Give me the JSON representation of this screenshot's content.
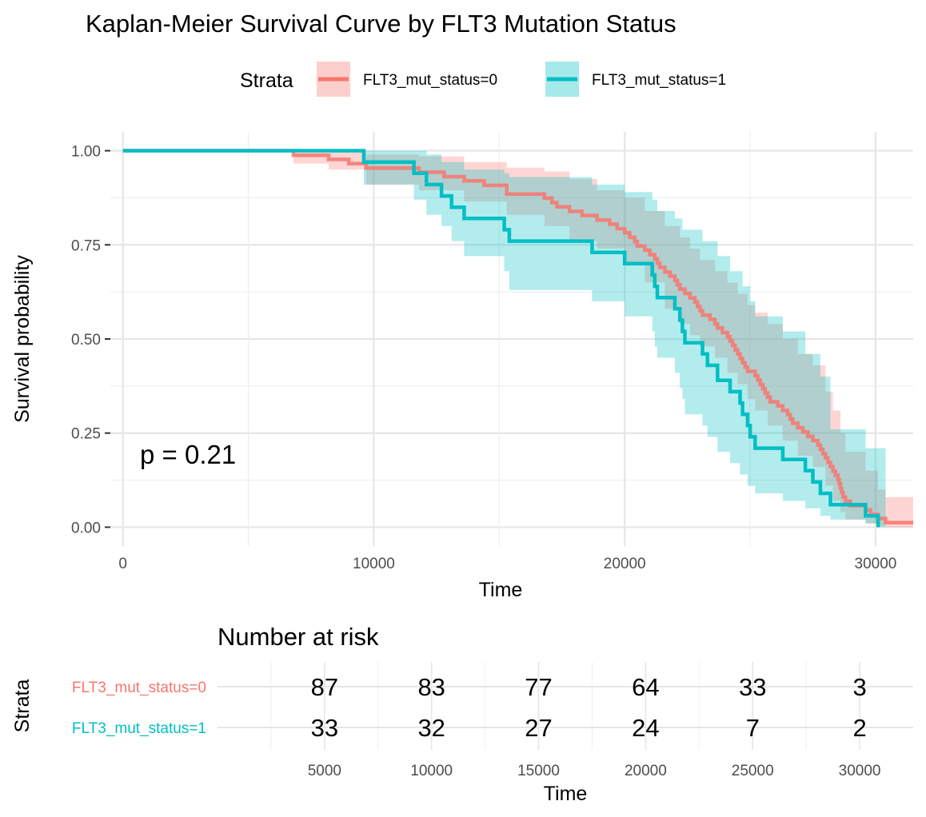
{
  "chart_data": {
    "type": "line",
    "title": "Kaplan-Meier Survival Curve by FLT3 Mutation Status",
    "xlabel": "Time",
    "ylabel": "Survival probability",
    "xlim": [
      -500,
      31500
    ],
    "ylim": [
      0,
      1
    ],
    "x_ticks": [
      "0",
      "10000",
      "20000",
      "30000"
    ],
    "x_tick_values": [
      0,
      10000,
      20000,
      30000
    ],
    "y_ticks": [
      "0.00",
      "0.25",
      "0.50",
      "0.75",
      "1.00"
    ],
    "y_tick_values": [
      0,
      0.25,
      0.5,
      0.75,
      1.0
    ],
    "grid": true,
    "legend": {
      "title": "Strata",
      "placement": "top",
      "entries": [
        "FLT3_mut_status=0",
        "FLT3_mut_status=1"
      ]
    },
    "annotation": "p = 0.21",
    "series": [
      {
        "name": "FLT3_mut_status=0",
        "color": "#F8766D",
        "points": [
          [
            0,
            1.0
          ],
          [
            6800,
            0.988
          ],
          [
            8200,
            0.977
          ],
          [
            9000,
            0.966
          ],
          [
            9700,
            0.954
          ],
          [
            11800,
            0.943
          ],
          [
            12800,
            0.931
          ],
          [
            13600,
            0.92
          ],
          [
            14400,
            0.908
          ],
          [
            15300,
            0.897
          ],
          [
            15300,
            0.885
          ],
          [
            16800,
            0.874
          ],
          [
            17100,
            0.862
          ],
          [
            17300,
            0.851
          ],
          [
            17800,
            0.839
          ],
          [
            18300,
            0.828
          ],
          [
            18900,
            0.816
          ],
          [
            19400,
            0.805
          ],
          [
            19700,
            0.793
          ],
          [
            20000,
            0.782
          ],
          [
            20200,
            0.77
          ],
          [
            20400,
            0.759
          ],
          [
            20500,
            0.747
          ],
          [
            20800,
            0.736
          ],
          [
            21000,
            0.724
          ],
          [
            21200,
            0.713
          ],
          [
            21300,
            0.701
          ],
          [
            21400,
            0.69
          ],
          [
            21600,
            0.678
          ],
          [
            21800,
            0.667
          ],
          [
            22000,
            0.655
          ],
          [
            22100,
            0.644
          ],
          [
            22200,
            0.632
          ],
          [
            22400,
            0.621
          ],
          [
            22600,
            0.609
          ],
          [
            22800,
            0.598
          ],
          [
            22900,
            0.586
          ],
          [
            23000,
            0.575
          ],
          [
            23100,
            0.563
          ],
          [
            23400,
            0.552
          ],
          [
            23600,
            0.54
          ],
          [
            23700,
            0.529
          ],
          [
            23900,
            0.517
          ],
          [
            24100,
            0.506
          ],
          [
            24200,
            0.494
          ],
          [
            24300,
            0.483
          ],
          [
            24400,
            0.471
          ],
          [
            24500,
            0.46
          ],
          [
            24600,
            0.448
          ],
          [
            24700,
            0.437
          ],
          [
            24800,
            0.425
          ],
          [
            24900,
            0.414
          ],
          [
            25200,
            0.402
          ],
          [
            25300,
            0.391
          ],
          [
            25400,
            0.379
          ],
          [
            25500,
            0.368
          ],
          [
            25600,
            0.356
          ],
          [
            25700,
            0.345
          ],
          [
            25800,
            0.333
          ],
          [
            26100,
            0.322
          ],
          [
            26300,
            0.31
          ],
          [
            26500,
            0.299
          ],
          [
            26600,
            0.287
          ],
          [
            26700,
            0.276
          ],
          [
            26900,
            0.264
          ],
          [
            27100,
            0.253
          ],
          [
            27300,
            0.241
          ],
          [
            27500,
            0.23
          ],
          [
            27700,
            0.218
          ],
          [
            27800,
            0.207
          ],
          [
            27900,
            0.195
          ],
          [
            28000,
            0.184
          ],
          [
            28100,
            0.172
          ],
          [
            28200,
            0.161
          ],
          [
            28300,
            0.149
          ],
          [
            28400,
            0.138
          ],
          [
            28500,
            0.126
          ],
          [
            28550,
            0.115
          ],
          [
            28600,
            0.103
          ],
          [
            28650,
            0.092
          ],
          [
            28700,
            0.08
          ],
          [
            28800,
            0.069
          ],
          [
            29000,
            0.057
          ],
          [
            29600,
            0.046
          ],
          [
            29800,
            0.034
          ],
          [
            30100,
            0.023
          ],
          [
            30400,
            0.012
          ],
          [
            31500,
            0.012
          ]
        ],
        "ci_upper": [
          [
            0,
            1.0
          ],
          [
            6800,
            1.0
          ],
          [
            8200,
            1.0
          ],
          [
            9700,
            0.99
          ],
          [
            11800,
            0.985
          ],
          [
            13600,
            0.97
          ],
          [
            15300,
            0.955
          ],
          [
            16800,
            0.945
          ],
          [
            17800,
            0.925
          ],
          [
            18900,
            0.895
          ],
          [
            20000,
            0.875
          ],
          [
            20800,
            0.84
          ],
          [
            21600,
            0.8
          ],
          [
            22200,
            0.77
          ],
          [
            22600,
            0.74
          ],
          [
            23000,
            0.71
          ],
          [
            23600,
            0.68
          ],
          [
            24100,
            0.65
          ],
          [
            24500,
            0.62
          ],
          [
            24900,
            0.59
          ],
          [
            25200,
            0.57
          ],
          [
            25700,
            0.54
          ],
          [
            26300,
            0.5
          ],
          [
            26900,
            0.46
          ],
          [
            27500,
            0.43
          ],
          [
            28000,
            0.36
          ],
          [
            28300,
            0.31
          ],
          [
            28600,
            0.25
          ],
          [
            28800,
            0.2
          ],
          [
            29600,
            0.15
          ],
          [
            30100,
            0.1
          ],
          [
            30400,
            0.08
          ],
          [
            31500,
            0.08
          ]
        ],
        "ci_lower": [
          [
            0,
            1.0
          ],
          [
            6800,
            0.966
          ],
          [
            8200,
            0.95
          ],
          [
            9700,
            0.91
          ],
          [
            11800,
            0.895
          ],
          [
            13600,
            0.865
          ],
          [
            15300,
            0.83
          ],
          [
            16800,
            0.8
          ],
          [
            17800,
            0.76
          ],
          [
            18900,
            0.74
          ],
          [
            20000,
            0.7
          ],
          [
            20800,
            0.65
          ],
          [
            21600,
            0.58
          ],
          [
            22200,
            0.54
          ],
          [
            22600,
            0.51
          ],
          [
            23000,
            0.48
          ],
          [
            23600,
            0.45
          ],
          [
            24100,
            0.41
          ],
          [
            24500,
            0.38
          ],
          [
            24900,
            0.34
          ],
          [
            25200,
            0.31
          ],
          [
            25700,
            0.27
          ],
          [
            26300,
            0.23
          ],
          [
            26900,
            0.19
          ],
          [
            27500,
            0.16
          ],
          [
            28000,
            0.11
          ],
          [
            28300,
            0.07
          ],
          [
            28600,
            0.04
          ],
          [
            28800,
            0.02
          ],
          [
            29600,
            0.01
          ],
          [
            30100,
            0.003
          ],
          [
            30400,
            0.0
          ],
          [
            31500,
            0.0
          ]
        ]
      },
      {
        "name": "FLT3_mut_status=1",
        "color": "#00BFC4",
        "points": [
          [
            0,
            1.0
          ],
          [
            9600,
            0.97
          ],
          [
            11600,
            0.94
          ],
          [
            12100,
            0.91
          ],
          [
            12700,
            0.88
          ],
          [
            13100,
            0.85
          ],
          [
            13600,
            0.82
          ],
          [
            15200,
            0.79
          ],
          [
            15400,
            0.76
          ],
          [
            18700,
            0.73
          ],
          [
            20000,
            0.7
          ],
          [
            21100,
            0.67
          ],
          [
            21200,
            0.64
          ],
          [
            21300,
            0.61
          ],
          [
            22000,
            0.58
          ],
          [
            22200,
            0.55
          ],
          [
            22300,
            0.52
          ],
          [
            22400,
            0.49
          ],
          [
            23100,
            0.46
          ],
          [
            23300,
            0.43
          ],
          [
            23700,
            0.39
          ],
          [
            24200,
            0.36
          ],
          [
            24600,
            0.33
          ],
          [
            24700,
            0.3
          ],
          [
            24900,
            0.27
          ],
          [
            25000,
            0.24
          ],
          [
            25200,
            0.21
          ],
          [
            26300,
            0.18
          ],
          [
            27200,
            0.15
          ],
          [
            27500,
            0.12
          ],
          [
            27800,
            0.09
          ],
          [
            28200,
            0.06
          ],
          [
            29600,
            0.03
          ],
          [
            30100,
            0.0
          ]
        ],
        "ci_upper": [
          [
            0,
            1.0
          ],
          [
            9600,
            1.0
          ],
          [
            11600,
            1.0
          ],
          [
            12100,
            0.99
          ],
          [
            12700,
            0.97
          ],
          [
            13600,
            0.95
          ],
          [
            15200,
            0.94
          ],
          [
            15400,
            0.93
          ],
          [
            18700,
            0.91
          ],
          [
            20000,
            0.89
          ],
          [
            21100,
            0.87
          ],
          [
            21300,
            0.84
          ],
          [
            22000,
            0.82
          ],
          [
            22300,
            0.79
          ],
          [
            23100,
            0.76
          ],
          [
            23700,
            0.72
          ],
          [
            24200,
            0.68
          ],
          [
            24700,
            0.64
          ],
          [
            25000,
            0.6
          ],
          [
            25200,
            0.56
          ],
          [
            26300,
            0.52
          ],
          [
            27200,
            0.46
          ],
          [
            27800,
            0.4
          ],
          [
            28200,
            0.26
          ],
          [
            29600,
            0.21
          ],
          [
            30100,
            0.21
          ],
          [
            30400,
            0.21
          ]
        ],
        "ci_lower": [
          [
            0,
            1.0
          ],
          [
            9600,
            0.91
          ],
          [
            11600,
            0.87
          ],
          [
            12100,
            0.83
          ],
          [
            12700,
            0.8
          ],
          [
            13100,
            0.76
          ],
          [
            13600,
            0.72
          ],
          [
            15200,
            0.68
          ],
          [
            15400,
            0.63
          ],
          [
            18700,
            0.6
          ],
          [
            20000,
            0.56
          ],
          [
            21100,
            0.52
          ],
          [
            21200,
            0.48
          ],
          [
            21300,
            0.45
          ],
          [
            22000,
            0.41
          ],
          [
            22200,
            0.37
          ],
          [
            22300,
            0.34
          ],
          [
            22400,
            0.3
          ],
          [
            23100,
            0.27
          ],
          [
            23300,
            0.24
          ],
          [
            23700,
            0.2
          ],
          [
            24200,
            0.17
          ],
          [
            24600,
            0.14
          ],
          [
            24900,
            0.11
          ],
          [
            25200,
            0.09
          ],
          [
            26300,
            0.07
          ],
          [
            27200,
            0.05
          ],
          [
            27800,
            0.03
          ],
          [
            28200,
            0.02
          ],
          [
            29600,
            0.01
          ],
          [
            30100,
            0.0
          ],
          [
            30400,
            0.0
          ]
        ]
      }
    ]
  },
  "risk_table": {
    "title": "Number at risk",
    "ylabel": "Strata",
    "xlabel": "Time",
    "time_ticks": [
      "5000",
      "10000",
      "15000",
      "20000",
      "25000",
      "30000"
    ],
    "time_values": [
      5000,
      10000,
      15000,
      20000,
      25000,
      30000
    ],
    "rows": [
      {
        "label": "FLT3_mut_status=0",
        "color": "#F8766D",
        "values": [
          "87",
          "83",
          "77",
          "64",
          "33",
          "3"
        ]
      },
      {
        "label": "FLT3_mut_status=1",
        "color": "#00BFC4",
        "values": [
          "33",
          "32",
          "27",
          "24",
          "7",
          "2"
        ]
      }
    ]
  }
}
